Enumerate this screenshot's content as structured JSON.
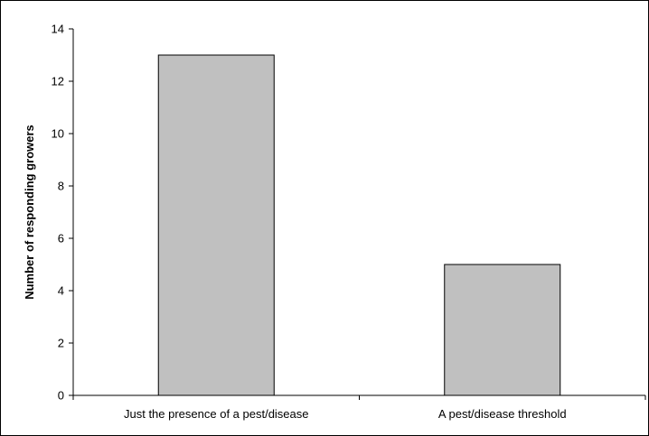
{
  "chart_data": {
    "type": "bar",
    "title": "",
    "xlabel": "",
    "ylabel": "Number of  responding growers",
    "categories": [
      "Just the presence of a pest/disease",
      "A pest/disease threshold"
    ],
    "values": [
      13,
      5
    ],
    "ylim": [
      0,
      14
    ],
    "yticks": [
      0,
      2,
      4,
      6,
      8,
      10,
      12,
      14
    ],
    "grid": false,
    "legend": "none",
    "bar_color": "#c0c0c0",
    "bar_edge_color": "#000000"
  }
}
